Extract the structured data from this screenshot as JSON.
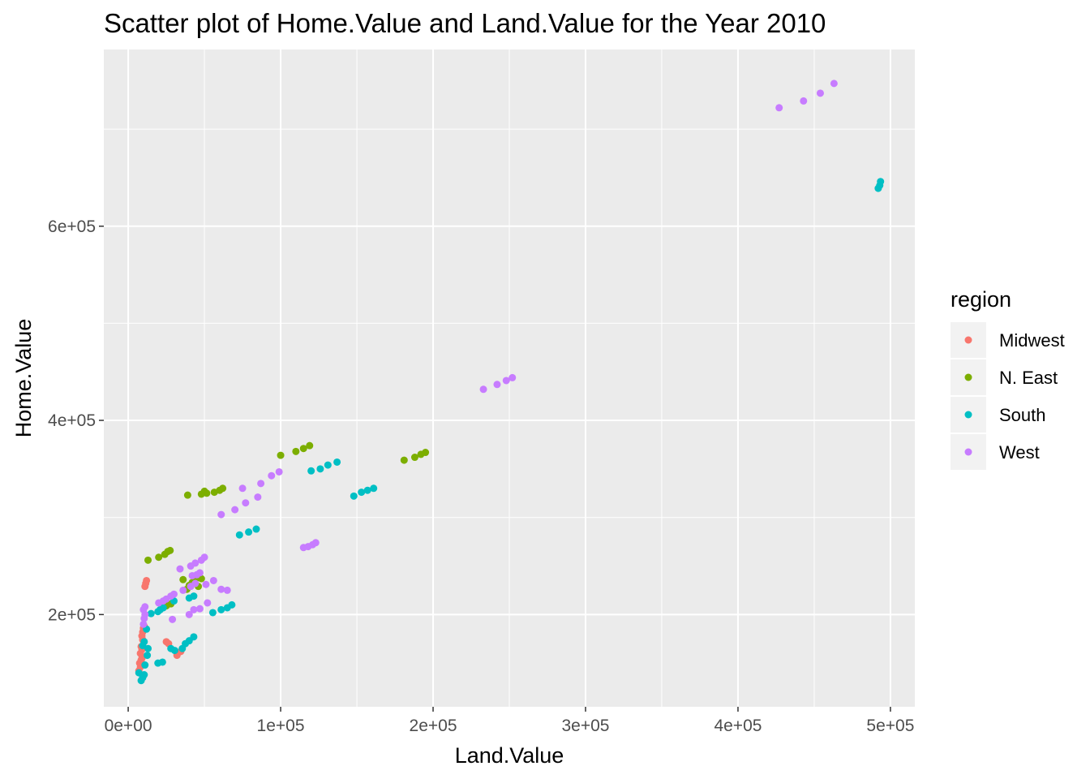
{
  "chart_data": {
    "type": "scatter",
    "title": "Scatter plot of Home.Value and Land.Value for the Year 2010",
    "xlabel": "Land.Value",
    "ylabel": "Home.Value",
    "xlim": [
      -16000,
      516000
    ],
    "ylim": [
      105000,
      782000
    ],
    "x_ticks": [
      0,
      100000,
      200000,
      300000,
      400000,
      500000
    ],
    "x_tick_labels": [
      "0e+00",
      "1e+05",
      "2e+05",
      "3e+05",
      "4e+05",
      "5e+05"
    ],
    "y_ticks": [
      200000,
      400000,
      600000
    ],
    "y_tick_labels": [
      "2e+05",
      "4e+05",
      "6e+05"
    ],
    "grid": true,
    "legend": {
      "title": "region",
      "position": "right"
    },
    "series": [
      {
        "name": "Midwest",
        "color": "#F8766D",
        "points": [
          [
            7000,
            142000
          ],
          [
            8000,
            146000
          ],
          [
            7500,
            150000
          ],
          [
            8500,
            153000
          ],
          [
            9000,
            155000
          ],
          [
            8000,
            160000
          ],
          [
            9000,
            164000
          ],
          [
            8500,
            167000
          ],
          [
            9500,
            174000
          ],
          [
            9000,
            178000
          ],
          [
            9500,
            182000
          ],
          [
            10000,
            186000
          ],
          [
            10500,
            188000
          ],
          [
            11000,
            229000
          ],
          [
            11500,
            232000
          ],
          [
            12000,
            235000
          ],
          [
            25000,
            172000
          ],
          [
            26500,
            170000
          ],
          [
            32000,
            158000
          ],
          [
            33000,
            161000
          ],
          [
            34500,
            162000
          ]
        ]
      },
      {
        "name": "N. East",
        "color": "#7CAE00",
        "points": [
          [
            13000,
            256000
          ],
          [
            20000,
            259000
          ],
          [
            24000,
            262000
          ],
          [
            26000,
            265000
          ],
          [
            27500,
            266000
          ],
          [
            36000,
            236000
          ],
          [
            38500,
            226000
          ],
          [
            40000,
            230000
          ],
          [
            42000,
            233000
          ],
          [
            44000,
            236000
          ],
          [
            46000,
            229000
          ],
          [
            48000,
            237000
          ],
          [
            39000,
            323000
          ],
          [
            48000,
            324000
          ],
          [
            50000,
            327000
          ],
          [
            51500,
            325000
          ],
          [
            56500,
            326000
          ],
          [
            60000,
            328000
          ],
          [
            62000,
            330000
          ],
          [
            100000,
            364000
          ],
          [
            110000,
            368000
          ],
          [
            115000,
            371000
          ],
          [
            119000,
            374000
          ],
          [
            181000,
            359000
          ],
          [
            188000,
            362000
          ],
          [
            192000,
            365000
          ],
          [
            195000,
            367000
          ],
          [
            28000,
            211000
          ],
          [
            25000,
            209000
          ]
        ]
      },
      {
        "name": "South",
        "color": "#00BFC4",
        "points": [
          [
            7000,
            140000
          ],
          [
            8500,
            132000
          ],
          [
            9500,
            135000
          ],
          [
            10500,
            138000
          ],
          [
            11000,
            148000
          ],
          [
            12500,
            158000
          ],
          [
            13000,
            165000
          ],
          [
            12000,
            185000
          ],
          [
            9500,
            168000
          ],
          [
            10500,
            172000
          ],
          [
            15000,
            201000
          ],
          [
            19500,
            203000
          ],
          [
            21000,
            205000
          ],
          [
            23000,
            207000
          ],
          [
            30000,
            214000
          ],
          [
            19500,
            150000
          ],
          [
            22500,
            151000
          ],
          [
            28000,
            165000
          ],
          [
            30500,
            163000
          ],
          [
            35500,
            165000
          ],
          [
            37500,
            170000
          ],
          [
            40000,
            173000
          ],
          [
            43000,
            177000
          ],
          [
            40000,
            217000
          ],
          [
            43000,
            219000
          ],
          [
            55500,
            202000
          ],
          [
            61000,
            205000
          ],
          [
            65000,
            207000
          ],
          [
            68000,
            210000
          ],
          [
            73000,
            282000
          ],
          [
            79000,
            285000
          ],
          [
            84000,
            288000
          ],
          [
            120000,
            348000
          ],
          [
            126000,
            350000
          ],
          [
            131000,
            354000
          ],
          [
            137000,
            357000
          ],
          [
            148000,
            322000
          ],
          [
            153000,
            326000
          ],
          [
            157000,
            328000
          ],
          [
            161000,
            330000
          ],
          [
            492000,
            639000
          ],
          [
            493000,
            642000
          ],
          [
            493500,
            646000
          ]
        ]
      },
      {
        "name": "West",
        "color": "#C77CFF",
        "points": [
          [
            10000,
            190000
          ],
          [
            10500,
            196000
          ],
          [
            11000,
            200000
          ],
          [
            10000,
            205000
          ],
          [
            11000,
            208000
          ],
          [
            20000,
            212000
          ],
          [
            23000,
            214000
          ],
          [
            25000,
            216000
          ],
          [
            28000,
            219000
          ],
          [
            30000,
            221000
          ],
          [
            29000,
            195000
          ],
          [
            36000,
            225000
          ],
          [
            41000,
            229000
          ],
          [
            44000,
            232000
          ],
          [
            43000,
            205000
          ],
          [
            47000,
            206000
          ],
          [
            40000,
            200000
          ],
          [
            52000,
            212000
          ],
          [
            34000,
            247000
          ],
          [
            41000,
            250000
          ],
          [
            44000,
            253000
          ],
          [
            48000,
            256000
          ],
          [
            50000,
            259000
          ],
          [
            42000,
            240000
          ],
          [
            45000,
            241000
          ],
          [
            47000,
            243000
          ],
          [
            51000,
            231000
          ],
          [
            56000,
            235000
          ],
          [
            61000,
            226000
          ],
          [
            65000,
            225000
          ],
          [
            61000,
            303000
          ],
          [
            70000,
            308000
          ],
          [
            77000,
            315000
          ],
          [
            85000,
            321000
          ],
          [
            75000,
            330000
          ],
          [
            87000,
            335000
          ],
          [
            94000,
            343000
          ],
          [
            99000,
            347000
          ],
          [
            115000,
            269000
          ],
          [
            118000,
            270000
          ],
          [
            121000,
            272000
          ],
          [
            123000,
            274000
          ],
          [
            233000,
            432000
          ],
          [
            242000,
            437000
          ],
          [
            248000,
            441000
          ],
          [
            252000,
            444000
          ],
          [
            427000,
            722000
          ],
          [
            443000,
            729000
          ],
          [
            454000,
            737000
          ],
          [
            463000,
            747000
          ]
        ]
      }
    ]
  }
}
